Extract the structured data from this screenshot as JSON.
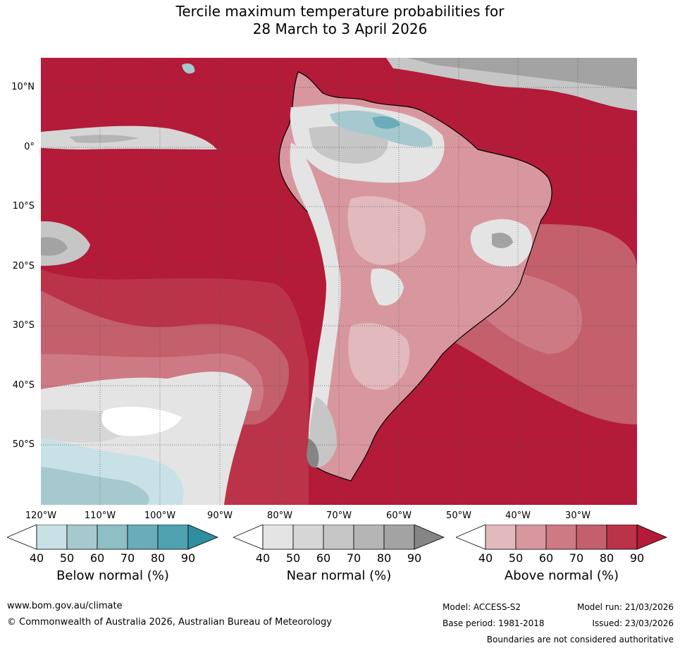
{
  "title": {
    "line1": "Tercile maximum temperature probabilities for",
    "line2": "28 March to 3 April 2026"
  },
  "map": {
    "latitude_labels": [
      "10°N",
      "0°",
      "10°S",
      "20°S",
      "30°S",
      "40°S",
      "50°S"
    ],
    "longitude_labels": [
      "120°W",
      "110°W",
      "100°W",
      "90°W",
      "80°W",
      "70°W",
      "60°W",
      "50°W",
      "40°W",
      "30°W"
    ]
  },
  "colorbars": {
    "below": {
      "title": "Below normal (%)",
      "ticks": [
        "40",
        "50",
        "60",
        "70",
        "80",
        "90"
      ],
      "colors": [
        "#ffffff",
        "#c8e1e7",
        "#a6c9cf",
        "#8ebec6",
        "#6aadb9",
        "#4fa2b0",
        "#2e8fa0"
      ]
    },
    "near": {
      "title": "Near normal (%)",
      "ticks": [
        "40",
        "50",
        "60",
        "70",
        "80",
        "90"
      ],
      "colors": [
        "#ffffff",
        "#e4e4e4",
        "#d6d6d6",
        "#c6c6c6",
        "#b5b5b5",
        "#a3a3a3",
        "#858585"
      ]
    },
    "above": {
      "title": "Above normal (%)",
      "ticks": [
        "40",
        "50",
        "60",
        "70",
        "80",
        "90"
      ],
      "colors": [
        "#ffffff",
        "#e2b9bd",
        "#d8979f",
        "#ce7a84",
        "#c45f6c",
        "#bb3348",
        "#b31b38"
      ]
    }
  },
  "footer": {
    "website": "www.bom.gov.au/climate",
    "copyright": "© Commonwealth of Australia 2026, Australian Bureau of Meteorology",
    "model": "Model: ACCESS-S2",
    "model_run": "Model run: 21/03/2026",
    "base_period": "Base period: 1981-2018",
    "issued": "Issued: 23/03/2026",
    "boundaries_note": "Boundaries are not considered authoritative"
  }
}
